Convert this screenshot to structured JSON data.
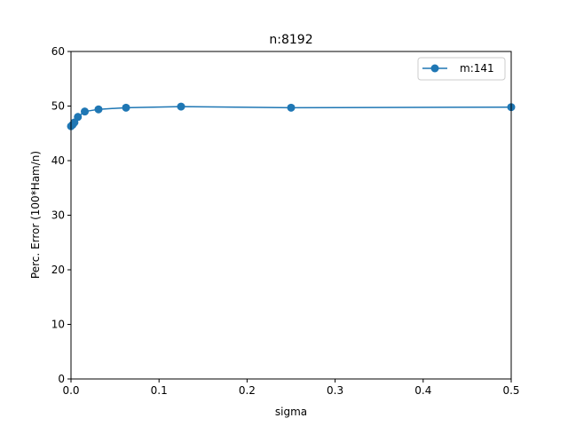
{
  "chart_data": {
    "type": "line",
    "title": "n:8192",
    "xlabel": "sigma",
    "ylabel": "Perc. Error (100*Ham/n)",
    "xlim": [
      0,
      0.5
    ],
    "ylim": [
      0,
      60
    ],
    "x_ticks": [
      0,
      0.1,
      0.2,
      0.3,
      0.4,
      0.5
    ],
    "x_tick_labels": [
      "0.0",
      "0.1",
      "0.2",
      "0.3",
      "0.4",
      "0.5"
    ],
    "y_ticks": [
      0,
      10,
      20,
      30,
      40,
      50,
      60
    ],
    "y_tick_labels": [
      "0",
      "10",
      "20",
      "30",
      "40",
      "50",
      "60"
    ],
    "grid": false,
    "legend_position": "top-right",
    "series": [
      {
        "name": "m:141",
        "color": "#1f77b4",
        "marker": "circle",
        "x": [
          0.0,
          0.001953125,
          0.00390625,
          0.0078125,
          0.015625,
          0.03125,
          0.0625,
          0.125,
          0.25,
          0.5
        ],
        "y": [
          46.3,
          46.6,
          47.0,
          48.0,
          49.0,
          49.4,
          49.7,
          49.9,
          49.7,
          49.8
        ]
      }
    ]
  }
}
